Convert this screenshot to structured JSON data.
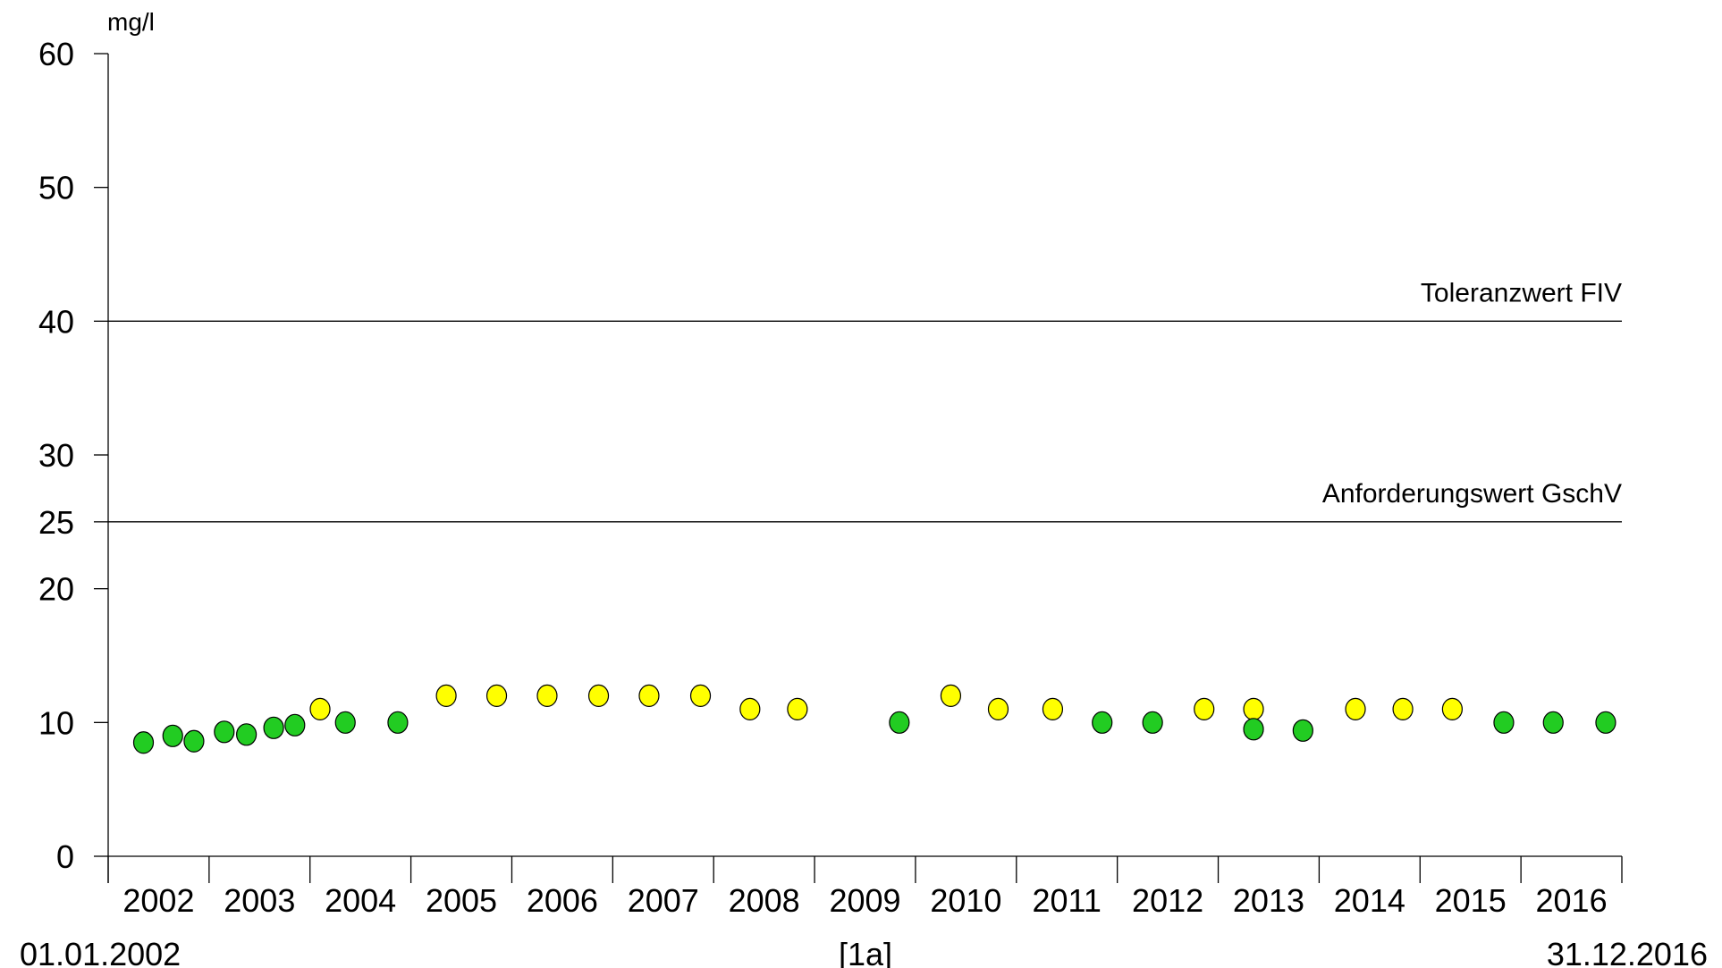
{
  "chart_data": {
    "type": "scatter",
    "title": "",
    "ylabel": "mg/l",
    "xlabel": "[1a]",
    "date_start": "01.01.2002",
    "date_end": "31.12.2016",
    "xlim": [
      2002.0,
      2017.0
    ],
    "ylim": [
      0,
      60
    ],
    "yticks": [
      0,
      10,
      20,
      25,
      30,
      40,
      50,
      60
    ],
    "year_labels": [
      "2002",
      "2003",
      "2004",
      "2005",
      "2006",
      "2007",
      "2008",
      "2009",
      "2010",
      "2011",
      "2012",
      "2013",
      "2014",
      "2015",
      "2016"
    ],
    "grid": false,
    "reference_lines": [
      {
        "label": "Toleranzwert FIV",
        "value": 40
      },
      {
        "label": "Anforderungswert GschV",
        "value": 25
      }
    ],
    "colors": {
      "green": "#22cc22",
      "yellow": "#ffff00"
    },
    "points": [
      {
        "x": 2002.35,
        "y": 8.5,
        "color": "green"
      },
      {
        "x": 2002.64,
        "y": 9.0,
        "color": "green"
      },
      {
        "x": 2002.85,
        "y": 8.6,
        "color": "green"
      },
      {
        "x": 2003.15,
        "y": 9.3,
        "color": "green"
      },
      {
        "x": 2003.37,
        "y": 9.1,
        "color": "green"
      },
      {
        "x": 2003.64,
        "y": 9.6,
        "color": "green"
      },
      {
        "x": 2003.85,
        "y": 9.8,
        "color": "green"
      },
      {
        "x": 2004.1,
        "y": 11.0,
        "color": "yellow"
      },
      {
        "x": 2004.35,
        "y": 10.0,
        "color": "green"
      },
      {
        "x": 2004.87,
        "y": 10.0,
        "color": "green"
      },
      {
        "x": 2005.35,
        "y": 12.0,
        "color": "yellow"
      },
      {
        "x": 2005.85,
        "y": 12.0,
        "color": "yellow"
      },
      {
        "x": 2006.35,
        "y": 12.0,
        "color": "yellow"
      },
      {
        "x": 2006.86,
        "y": 12.0,
        "color": "yellow"
      },
      {
        "x": 2007.36,
        "y": 12.0,
        "color": "yellow"
      },
      {
        "x": 2007.87,
        "y": 12.0,
        "color": "yellow"
      },
      {
        "x": 2008.36,
        "y": 11.0,
        "color": "yellow"
      },
      {
        "x": 2008.83,
        "y": 11.0,
        "color": "yellow"
      },
      {
        "x": 2009.84,
        "y": 10.0,
        "color": "green"
      },
      {
        "x": 2010.35,
        "y": 12.0,
        "color": "yellow"
      },
      {
        "x": 2010.82,
        "y": 11.0,
        "color": "yellow"
      },
      {
        "x": 2011.36,
        "y": 11.0,
        "color": "yellow"
      },
      {
        "x": 2011.85,
        "y": 10.0,
        "color": "green"
      },
      {
        "x": 2012.35,
        "y": 10.0,
        "color": "green"
      },
      {
        "x": 2012.86,
        "y": 11.0,
        "color": "yellow"
      },
      {
        "x": 2013.35,
        "y": 11.0,
        "color": "yellow"
      },
      {
        "x": 2013.35,
        "y": 9.5,
        "color": "green"
      },
      {
        "x": 2013.84,
        "y": 9.4,
        "color": "green"
      },
      {
        "x": 2014.36,
        "y": 11.0,
        "color": "yellow"
      },
      {
        "x": 2014.83,
        "y": 11.0,
        "color": "yellow"
      },
      {
        "x": 2015.32,
        "y": 11.0,
        "color": "yellow"
      },
      {
        "x": 2015.83,
        "y": 10.0,
        "color": "green"
      },
      {
        "x": 2016.32,
        "y": 10.0,
        "color": "green"
      },
      {
        "x": 2016.84,
        "y": 10.0,
        "color": "green"
      }
    ]
  }
}
